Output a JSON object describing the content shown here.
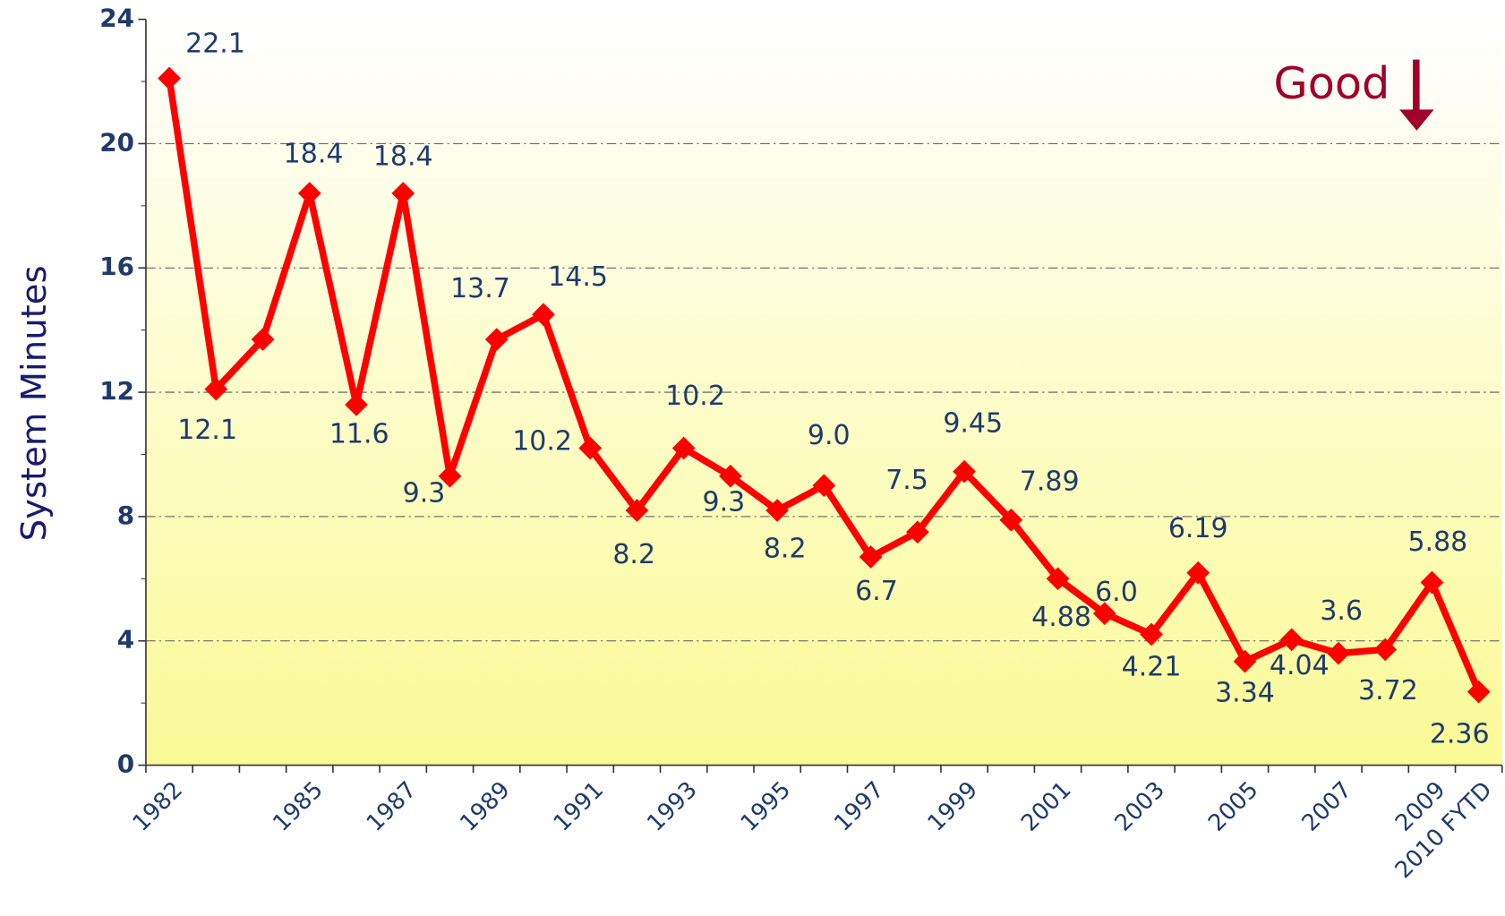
{
  "chart_data": {
    "type": "line",
    "y_label": "System Minutes",
    "annotation": "Good",
    "categories": [
      "1982",
      null,
      null,
      "1985",
      null,
      "1987",
      null,
      "1989",
      null,
      "1991",
      null,
      "1993",
      null,
      "1995",
      null,
      "1997",
      null,
      "1999",
      null,
      "2001",
      null,
      "2003",
      null,
      "2005",
      null,
      "2007",
      null,
      "2009",
      "2010 FYTD"
    ],
    "series": [
      {
        "name": "System Minutes",
        "color": "#ff0000",
        "values": [
          22.1,
          12.1,
          13.7,
          18.4,
          11.6,
          18.4,
          9.3,
          13.7,
          14.5,
          10.2,
          8.2,
          10.2,
          9.3,
          8.2,
          9.0,
          6.7,
          7.5,
          9.45,
          7.89,
          6.0,
          4.88,
          4.21,
          6.19,
          3.34,
          4.04,
          3.6,
          3.72,
          5.88,
          2.36
        ],
        "value_labels": [
          "22.1",
          "12.1",
          null,
          "18.4",
          "11.6",
          "18.4",
          "9.3",
          "13.7",
          "14.5",
          "10.2",
          "8.2",
          "10.2",
          "9.3",
          "8.2",
          "9.0",
          "6.7",
          "7.5",
          "9.45",
          "7.89",
          "6.0",
          "4.88",
          "4.21",
          "6.19",
          "3.34",
          "4.04",
          "3.6",
          "3.72",
          "5.88",
          "2.36"
        ]
      }
    ],
    "ylim": [
      0,
      24
    ],
    "yticks": [
      0,
      4,
      8,
      12,
      16,
      20,
      24
    ],
    "grid": true
  }
}
